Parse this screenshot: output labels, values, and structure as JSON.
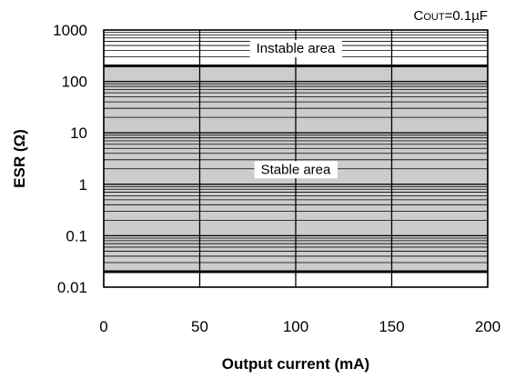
{
  "chart_data": {
    "type": "area",
    "title": "",
    "condition_label": "COUT=0.1µF",
    "condition": {
      "prefix": "C",
      "subscript": "OUT",
      "suffix": "=0.1µF"
    },
    "xlabel": "Output current (mA)",
    "ylabel": "ESR (Ω)",
    "x_scale": "linear",
    "y_scale": "log",
    "xlim": [
      0,
      200
    ],
    "ylim": [
      0.01,
      1000
    ],
    "x_ticks": [
      "0",
      "50",
      "100",
      "150",
      "200"
    ],
    "y_ticks": [
      "0.01",
      "0.1",
      "1",
      "10",
      "100",
      "1000"
    ],
    "grid": true,
    "boundaries": {
      "lower_esr": 0.02,
      "upper_esr": 200
    },
    "regions": [
      {
        "name": "Stable area",
        "esr_min": 0.02,
        "esr_max": 200,
        "fill": "#cccccc"
      },
      {
        "name": "Instable area",
        "esr_min": 200,
        "esr_max": 1000,
        "fill": "#ffffff"
      }
    ],
    "annotations": [
      {
        "text": "Instable area",
        "x": 100,
        "y": 450
      },
      {
        "text": "Stable area",
        "x": 100,
        "y": 2
      }
    ]
  }
}
